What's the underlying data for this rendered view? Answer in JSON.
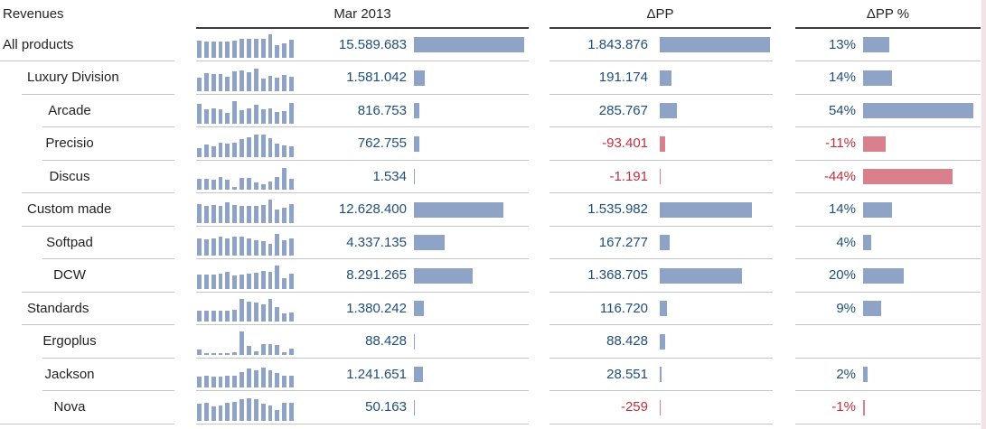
{
  "header": {
    "revenues": "Revenues",
    "mar": "Mar 2013",
    "dpp": "ΔPP",
    "dpp_pct": "ΔPP %"
  },
  "colors": {
    "bar_positive": "#8fa3c6",
    "bar_negative": "#d8818c",
    "text_positive": "#1f4e79",
    "text_negative": "#c0303c",
    "sparkline": "#8fa3c6",
    "label_text": "#222222",
    "separator": "#c5c5c5",
    "header_rule": "#3d3d3d"
  },
  "chart_data": {
    "type": "table",
    "title": "Revenues",
    "columns": [
      "Revenues",
      "Mar 2013",
      "ΔPP",
      "ΔPP %"
    ],
    "notes": "hierarchical revenue table; sparkline values are relative 0-1 estimates; bars scale linearly, column max = widest bar",
    "rows": [
      {
        "label": "All products",
        "level": 0,
        "mar": {
          "text": "15.589.683",
          "value": 15589683
        },
        "dpp": {
          "text": "1.843.876",
          "value": 1843876,
          "negative": false
        },
        "pct": {
          "text": "13%",
          "value": 13,
          "negative": false
        },
        "spark": [
          0.75,
          0.68,
          0.7,
          0.68,
          0.7,
          0.74,
          0.8,
          0.82,
          0.82,
          0.8,
          1.0,
          0.55,
          0.62,
          0.78
        ]
      },
      {
        "label": "Luxury Division",
        "level": 1,
        "mar": {
          "text": "1.581.042",
          "value": 1581042
        },
        "dpp": {
          "text": "191.174",
          "value": 191174,
          "negative": false
        },
        "pct": {
          "text": "14%",
          "value": 14,
          "negative": false
        },
        "spark": [
          0.55,
          0.75,
          0.7,
          0.72,
          0.6,
          0.82,
          0.88,
          0.8,
          0.95,
          0.52,
          0.62,
          0.55,
          0.68,
          0.6
        ]
      },
      {
        "label": "Arcade",
        "level": 2,
        "mar": {
          "text": "816.753",
          "value": 816753
        },
        "dpp": {
          "text": "285.767",
          "value": 285767,
          "negative": false
        },
        "pct": {
          "text": "54%",
          "value": 54,
          "negative": false
        },
        "spark": [
          0.85,
          0.6,
          0.66,
          0.6,
          0.45,
          0.95,
          0.56,
          0.64,
          0.8,
          0.62,
          0.66,
          0.5,
          0.55,
          0.88
        ]
      },
      {
        "label": "Precisio",
        "level": 2,
        "mar": {
          "text": "762.755",
          "value": 762755
        },
        "dpp": {
          "text": "-93.401",
          "value": -93401,
          "negative": true
        },
        "pct": {
          "text": "-11%",
          "value": -11,
          "negative": true
        },
        "spark": [
          0.35,
          0.52,
          0.46,
          0.6,
          0.55,
          0.6,
          0.75,
          0.82,
          0.95,
          0.95,
          0.8,
          0.55,
          0.5,
          0.45
        ]
      },
      {
        "label": "Discus",
        "level": 2,
        "mar": {
          "text": "1.534",
          "value": 1534
        },
        "dpp": {
          "text": "-1.191",
          "value": -1191,
          "negative": true
        },
        "pct": {
          "text": "-44%",
          "value": -44,
          "negative": true
        },
        "spark": [
          0.45,
          0.45,
          0.44,
          0.55,
          0.44,
          0.1,
          0.5,
          0.5,
          0.3,
          0.22,
          0.36,
          0.55,
          0.92,
          0.46
        ]
      },
      {
        "label": "Custom made",
        "level": 1,
        "mar": {
          "text": "12.628.400",
          "value": 12628400
        },
        "dpp": {
          "text": "1.535.982",
          "value": 1535982,
          "negative": false
        },
        "pct": {
          "text": "14%",
          "value": 14,
          "negative": false
        },
        "spark": [
          0.8,
          0.7,
          0.75,
          0.7,
          0.85,
          0.75,
          0.72,
          0.7,
          0.72,
          0.76,
          1.0,
          0.55,
          0.62,
          0.8
        ]
      },
      {
        "label": "Softpad",
        "level": 2,
        "mar": {
          "text": "4.337.135",
          "value": 4337135
        },
        "dpp": {
          "text": "167.277",
          "value": 167277,
          "negative": false
        },
        "pct": {
          "text": "4%",
          "value": 4,
          "negative": false
        },
        "spark": [
          0.75,
          0.7,
          0.74,
          0.8,
          0.75,
          0.8,
          0.8,
          0.75,
          0.66,
          0.6,
          0.5,
          0.92,
          0.66,
          0.72
        ]
      },
      {
        "label": "DCW",
        "level": 2,
        "mar": {
          "text": "8.291.265",
          "value": 8291265
        },
        "dpp": {
          "text": "1.368.705",
          "value": 1368705,
          "negative": false
        },
        "pct": {
          "text": "20%",
          "value": 20,
          "negative": false
        },
        "spark": [
          0.58,
          0.6,
          0.6,
          0.62,
          0.7,
          0.55,
          0.6,
          0.62,
          0.66,
          0.74,
          0.72,
          1.0,
          0.45,
          0.62
        ]
      },
      {
        "label": "Standards",
        "level": 1,
        "mar": {
          "text": "1.380.242",
          "value": 1380242
        },
        "dpp": {
          "text": "116.720",
          "value": 116720,
          "negative": false
        },
        "pct": {
          "text": "9%",
          "value": 9,
          "negative": false
        },
        "spark": [
          0.45,
          0.45,
          0.45,
          0.45,
          0.45,
          0.5,
          0.95,
          0.85,
          0.8,
          0.75,
          0.95,
          0.6,
          0.35,
          0.4
        ]
      },
      {
        "label": "Ergoplus",
        "level": 2,
        "mar": {
          "text": "88.428",
          "value": 88428
        },
        "dpp": {
          "text": "88.428",
          "value": 88428,
          "negative": false
        },
        "pct": {
          "text": "",
          "value": null,
          "negative": false
        },
        "spark": [
          0.22,
          0.05,
          0.05,
          0.05,
          0.05,
          0.08,
          1.0,
          0.35,
          0.15,
          0.45,
          0.45,
          0.4,
          0.1,
          0.25
        ]
      },
      {
        "label": "Jackson",
        "level": 2,
        "mar": {
          "text": "1.241.651",
          "value": 1241651
        },
        "dpp": {
          "text": "28.551",
          "value": 28551,
          "negative": false
        },
        "pct": {
          "text": "2%",
          "value": 2,
          "negative": false
        },
        "spark": [
          0.45,
          0.5,
          0.48,
          0.45,
          0.5,
          0.5,
          0.65,
          0.8,
          0.75,
          0.85,
          0.75,
          0.6,
          0.5,
          0.5
        ]
      },
      {
        "label": "Nova",
        "level": 2,
        "mar": {
          "text": "50.163",
          "value": 50163
        },
        "dpp": {
          "text": "-259",
          "value": -259,
          "negative": true
        },
        "pct": {
          "text": "-1%",
          "value": -1,
          "negative": true
        },
        "spark": [
          0.7,
          0.75,
          0.6,
          0.65,
          0.75,
          0.8,
          0.9,
          0.95,
          0.9,
          0.7,
          0.65,
          0.45,
          0.75,
          0.75
        ]
      }
    ]
  }
}
